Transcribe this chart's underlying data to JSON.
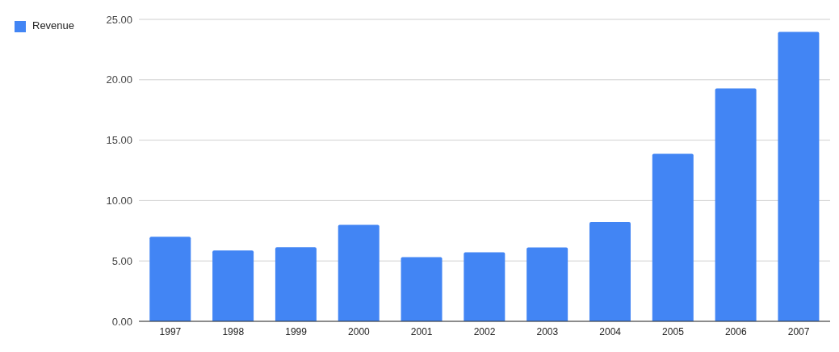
{
  "chart_data": {
    "type": "bar",
    "categories": [
      "1997",
      "1998",
      "1999",
      "2000",
      "2001",
      "2002",
      "2003",
      "2004",
      "2005",
      "2006",
      "2007"
    ],
    "series": [
      {
        "name": "Revenue",
        "color": "#4285f4",
        "values": [
          7.01,
          5.87,
          6.14,
          7.98,
          5.31,
          5.72,
          6.12,
          8.22,
          13.87,
          19.28,
          23.96
        ]
      }
    ],
    "ylim": [
      0,
      25
    ],
    "yticks": [
      {
        "value": 0,
        "label": "0.00"
      },
      {
        "value": 5,
        "label": "5.00"
      },
      {
        "value": 10,
        "label": "10.00"
      },
      {
        "value": 15,
        "label": "15.00"
      },
      {
        "value": 20,
        "label": "20.00"
      },
      {
        "value": 25,
        "label": "25.00"
      }
    ],
    "grid": "y",
    "legend": "top left"
  }
}
